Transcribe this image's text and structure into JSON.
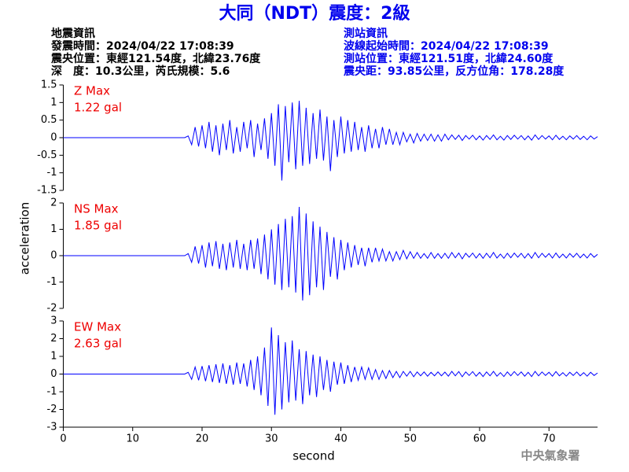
{
  "header": {
    "title": "大同（NDT）震度：2級",
    "left": [
      "地震資訊",
      "發震時間：2024/04/22 17:08:39",
      "震央位置：東經121.54度，北緯23.76度",
      "深　度：10.3公里，芮氏規模：5.6"
    ],
    "right": [
      "測站資訊",
      "波線起始時間：2024/04/22 17:08:39",
      "測站位置：東經121.51度，北緯24.60度",
      "震央距：93.85公里，反方位角：178.28度"
    ],
    "footer": "中央氣象署"
  },
  "chart_data": {
    "type": "line",
    "xlabel": "second",
    "ylabel": "acceleration",
    "xlim": [
      0,
      77
    ],
    "xticks": [
      0,
      10,
      20,
      30,
      40,
      50,
      60,
      70
    ],
    "x": [
      0,
      17.5,
      18,
      18.5,
      19,
      19.5,
      20,
      20.5,
      21,
      21.5,
      22,
      22.5,
      23,
      23.5,
      24,
      24.5,
      25,
      25.5,
      26,
      26.5,
      27,
      27.5,
      28,
      28.5,
      29,
      29.5,
      30,
      30.5,
      31,
      31.5,
      32,
      32.5,
      33,
      33.5,
      34,
      34.5,
      35,
      35.5,
      36,
      36.5,
      37,
      37.5,
      38,
      38.5,
      39,
      39.5,
      40,
      40.5,
      41,
      41.5,
      42,
      42.5,
      43,
      43.5,
      44,
      44.5,
      45,
      45.5,
      46,
      46.5,
      47,
      47.5,
      48,
      48.5,
      49,
      49.5,
      50,
      50.5,
      51,
      51.5,
      52,
      52.5,
      53,
      53.5,
      54,
      54.5,
      55,
      55.5,
      56,
      56.5,
      57,
      57.5,
      58,
      58.5,
      59,
      59.5,
      60,
      60.5,
      61,
      61.5,
      62,
      62.5,
      63,
      63.5,
      64,
      64.5,
      65,
      65.5,
      66,
      66.5,
      67,
      67.5,
      68,
      68.5,
      69,
      69.5,
      70,
      70.5,
      71,
      71.5,
      72,
      72.5,
      73,
      73.5,
      74,
      74.5,
      75,
      75.5,
      76,
      76.5,
      77
    ],
    "panels": [
      {
        "annotation": [
          "Z Max",
          "1.22 gal"
        ],
        "ylim": [
          -1.5,
          1.5
        ],
        "yticks": [
          -1.5,
          -1,
          -0.5,
          0,
          0.5,
          1,
          1.5
        ],
        "series": [
          {
            "color": "#0000ff",
            "values": [
              0,
              0,
              0.05,
              -0.2,
              0.3,
              -0.25,
              0.35,
              -0.3,
              0.45,
              -0.4,
              0.35,
              -0.5,
              0.4,
              -0.35,
              0.5,
              -0.45,
              0.3,
              -0.4,
              0.45,
              -0.3,
              0.5,
              -0.55,
              0.4,
              -0.35,
              0.55,
              -0.6,
              0.7,
              -0.8,
              0.95,
              -1.22,
              0.9,
              -0.7,
              1.0,
              -0.9,
              1.05,
              -0.8,
              0.85,
              -0.75,
              0.7,
              -0.6,
              0.8,
              -0.65,
              0.6,
              -0.95,
              0.5,
              -0.55,
              0.6,
              -0.45,
              0.5,
              -0.4,
              0.45,
              -0.35,
              0.3,
              -0.4,
              0.35,
              -0.3,
              0.25,
              -0.3,
              0.3,
              -0.2,
              0.25,
              -0.2,
              0.15,
              -0.2,
              0.15,
              -0.12,
              0.1,
              -0.15,
              0.12,
              -0.1,
              0.1,
              -0.08,
              0.1,
              -0.1,
              0.08,
              -0.1,
              0.1,
              -0.06,
              0.08,
              -0.05,
              0.07,
              -0.08,
              0.06,
              -0.04,
              0.07,
              -0.06,
              0.05,
              -0.07,
              0.06,
              -0.05,
              0.08,
              -0.06,
              0.04,
              -0.07,
              0.06,
              -0.05,
              0.07,
              -0.04,
              0.06,
              -0.06,
              0.05,
              -0.07,
              0.08,
              -0.05,
              0.06,
              -0.04,
              0.05,
              -0.06,
              0.07,
              -0.05,
              0.04,
              -0.06,
              0.05,
              -0.04,
              0.06,
              -0.05,
              0.04,
              -0.06,
              0.05,
              -0.04,
              0.03
            ]
          }
        ]
      },
      {
        "annotation": [
          "NS Max",
          "1.85 gal"
        ],
        "ylim": [
          -2,
          2
        ],
        "yticks": [
          -2,
          -1,
          0,
          1,
          2
        ],
        "series": [
          {
            "color": "#0000ff",
            "values": [
              0,
              0,
              0.08,
              -0.25,
              0.35,
              -0.3,
              0.4,
              -0.45,
              0.5,
              -0.4,
              0.55,
              -0.5,
              0.45,
              -0.55,
              0.5,
              -0.45,
              0.6,
              -0.5,
              0.45,
              -0.55,
              0.6,
              -0.5,
              0.65,
              -0.7,
              0.8,
              -0.9,
              1.0,
              -1.1,
              1.2,
              -1.3,
              1.4,
              -1.2,
              1.5,
              -1.4,
              1.85,
              -1.7,
              1.6,
              -1.5,
              1.3,
              -1.2,
              1.1,
              -1.3,
              0.9,
              -0.8,
              0.7,
              -0.9,
              0.6,
              -0.55,
              0.5,
              -0.45,
              0.4,
              -0.35,
              0.3,
              -0.4,
              0.3,
              -0.25,
              0.3,
              -0.2,
              0.25,
              -0.2,
              0.15,
              -0.2,
              0.15,
              -0.15,
              0.2,
              -0.12,
              0.15,
              -0.1,
              0.12,
              -0.1,
              0.08,
              -0.1,
              0.12,
              -0.1,
              0.08,
              -0.1,
              0.09,
              -0.1,
              0.12,
              -0.08,
              0.1,
              -0.12,
              0.09,
              -0.06,
              0.1,
              -0.09,
              0.08,
              -0.1,
              0.09,
              -0.08,
              0.12,
              -0.09,
              0.06,
              -0.1,
              0.09,
              -0.08,
              0.1,
              -0.06,
              0.09,
              -0.09,
              0.08,
              -0.1,
              0.12,
              -0.08,
              0.09,
              -0.06,
              0.08,
              -0.09,
              0.1,
              -0.08,
              0.06,
              -0.09,
              0.08,
              -0.06,
              0.09,
              -0.08,
              0.06,
              -0.09,
              0.08,
              -0.06,
              0.05
            ]
          }
        ]
      },
      {
        "annotation": [
          "EW Max",
          "2.63 gal"
        ],
        "ylim": [
          -3,
          3
        ],
        "yticks": [
          -3,
          -2,
          -1,
          0,
          1,
          2,
          3
        ],
        "series": [
          {
            "color": "#0000ff",
            "values": [
              0,
              0,
              0.1,
              -0.3,
              0.4,
              -0.35,
              0.45,
              -0.4,
              0.5,
              -0.45,
              0.55,
              -0.5,
              0.6,
              -0.55,
              0.5,
              -0.6,
              0.65,
              -0.55,
              0.6,
              -0.7,
              0.8,
              -0.9,
              1.0,
              -1.2,
              1.5,
              -1.8,
              2.63,
              -2.3,
              2.2,
              -2.0,
              1.8,
              -1.6,
              1.9,
              -1.5,
              1.4,
              -1.7,
              1.3,
              -1.2,
              1.1,
              -1.3,
              1.0,
              -0.9,
              0.8,
              -1.0,
              0.7,
              -0.6,
              0.65,
              -0.55,
              0.5,
              -0.45,
              0.4,
              -0.35,
              0.4,
              -0.3,
              0.35,
              -0.3,
              0.25,
              -0.3,
              0.2,
              -0.25,
              0.2,
              -0.2,
              0.15,
              -0.2,
              0.15,
              -0.12,
              0.15,
              -0.15,
              0.12,
              -0.1,
              0.12,
              -0.12,
              0.1,
              -0.1,
              0.12,
              -0.1,
              0.11,
              -0.12,
              0.15,
              -0.1,
              0.14,
              -0.15,
              0.12,
              -0.08,
              0.14,
              -0.12,
              0.1,
              -0.14,
              0.12,
              -0.1,
              0.15,
              -0.12,
              0.08,
              -0.14,
              0.12,
              -0.1,
              0.14,
              -0.08,
              0.12,
              -0.12,
              0.1,
              -0.14,
              0.15,
              -0.1,
              0.12,
              -0.08,
              0.1,
              -0.12,
              0.14,
              -0.1,
              0.08,
              -0.12,
              0.1,
              -0.08,
              0.12,
              -0.1,
              0.08,
              -0.12,
              0.1,
              -0.08,
              0.06
            ]
          }
        ]
      }
    ]
  }
}
